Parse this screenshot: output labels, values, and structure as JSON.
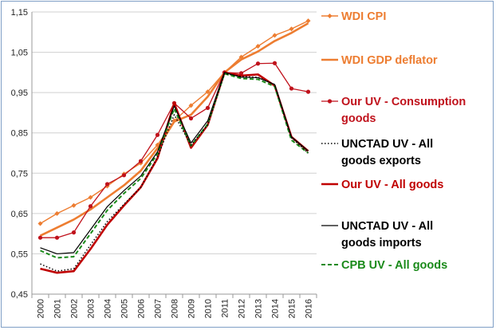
{
  "chart_data": {
    "type": "line",
    "title": "",
    "xlabel": "",
    "ylabel": "",
    "x": [
      "2000",
      "2001",
      "2002",
      "2003",
      "2004",
      "2005",
      "2006",
      "2007",
      "2008",
      "2009",
      "2010",
      "2011",
      "2012",
      "2013",
      "2014",
      "2015",
      "2016"
    ],
    "ylim": [
      0.45,
      1.15
    ],
    "yticks": [
      "0,45",
      "0,55",
      "0,65",
      "0,75",
      "0,85",
      "0,95",
      "1,05",
      "1,15"
    ],
    "grid": "horizontal",
    "legend_position": "right",
    "series": [
      {
        "name": "WDI CPI",
        "color": "#ed7d31",
        "style": "solid-diamond-markers",
        "values": [
          0.625,
          0.65,
          0.67,
          0.69,
          0.718,
          0.748,
          0.775,
          0.82,
          0.88,
          0.918,
          0.952,
          1.0,
          1.038,
          1.065,
          1.092,
          1.108,
          1.128
        ]
      },
      {
        "name": "WDI GDP deflator",
        "color": "#ed7d31",
        "style": "solid-thick",
        "values": [
          0.595,
          0.615,
          0.635,
          0.66,
          0.69,
          0.72,
          0.756,
          0.812,
          0.878,
          0.895,
          0.94,
          1.0,
          1.032,
          1.052,
          1.078,
          1.098,
          1.122
        ]
      },
      {
        "name": "Our UV - Consumption goods",
        "color": "#c0121c",
        "style": "solid-circle-markers",
        "values": [
          0.59,
          0.59,
          0.603,
          0.668,
          0.723,
          0.745,
          0.78,
          0.845,
          0.924,
          0.886,
          0.912,
          1.0,
          0.998,
          1.022,
          1.023,
          0.96,
          0.952
        ]
      },
      {
        "name": "UNCTAD UV - All goods exports",
        "color": "#000000",
        "style": "dotted",
        "values": [
          0.525,
          0.507,
          0.513,
          0.572,
          0.63,
          0.673,
          0.715,
          0.79,
          0.895,
          0.82,
          0.87,
          0.997,
          0.99,
          0.988,
          0.97,
          0.838,
          0.8
        ]
      },
      {
        "name": "Our UV - All goods",
        "color": "#c00000",
        "style": "solid-thick",
        "values": [
          0.513,
          0.503,
          0.507,
          0.562,
          0.622,
          0.67,
          0.715,
          0.787,
          0.924,
          0.813,
          0.87,
          1.0,
          0.992,
          0.995,
          0.967,
          0.84,
          0.805
        ]
      },
      {
        "name": "UNCTAD UV - All goods imports",
        "color": "#000000",
        "style": "solid-thin",
        "values": [
          0.565,
          0.55,
          0.553,
          0.61,
          0.667,
          0.707,
          0.743,
          0.803,
          0.917,
          0.825,
          0.88,
          1.0,
          0.988,
          0.987,
          0.97,
          0.84,
          0.805
        ]
      },
      {
        "name": "CPB UV - All goods",
        "color": "#1a8a1a",
        "style": "dashed",
        "values": [
          0.558,
          0.54,
          0.543,
          0.6,
          0.658,
          0.7,
          0.737,
          0.798,
          0.91,
          0.818,
          0.872,
          0.997,
          0.985,
          0.983,
          0.965,
          0.832,
          0.8
        ]
      }
    ]
  },
  "legend": [
    {
      "lines": [
        "WDI CPI"
      ],
      "color": "#ed7d31"
    },
    {
      "lines": [
        "WDI GDP deflator"
      ],
      "color": "#ed7d31"
    },
    {
      "lines": [
        "Our UV - Consumption",
        "goods"
      ],
      "color": "#c0121c"
    },
    {
      "lines": [
        "UNCTAD UV - All",
        "goods exports"
      ],
      "color": "#000000"
    },
    {
      "lines": [
        "Our UV - All goods"
      ],
      "color": "#c00000"
    },
    {
      "lines": [
        "UNCTAD UV - All",
        "goods imports"
      ],
      "color": "#000000"
    },
    {
      "lines": [
        "CPB UV - All goods"
      ],
      "color": "#1a8a1a"
    }
  ]
}
